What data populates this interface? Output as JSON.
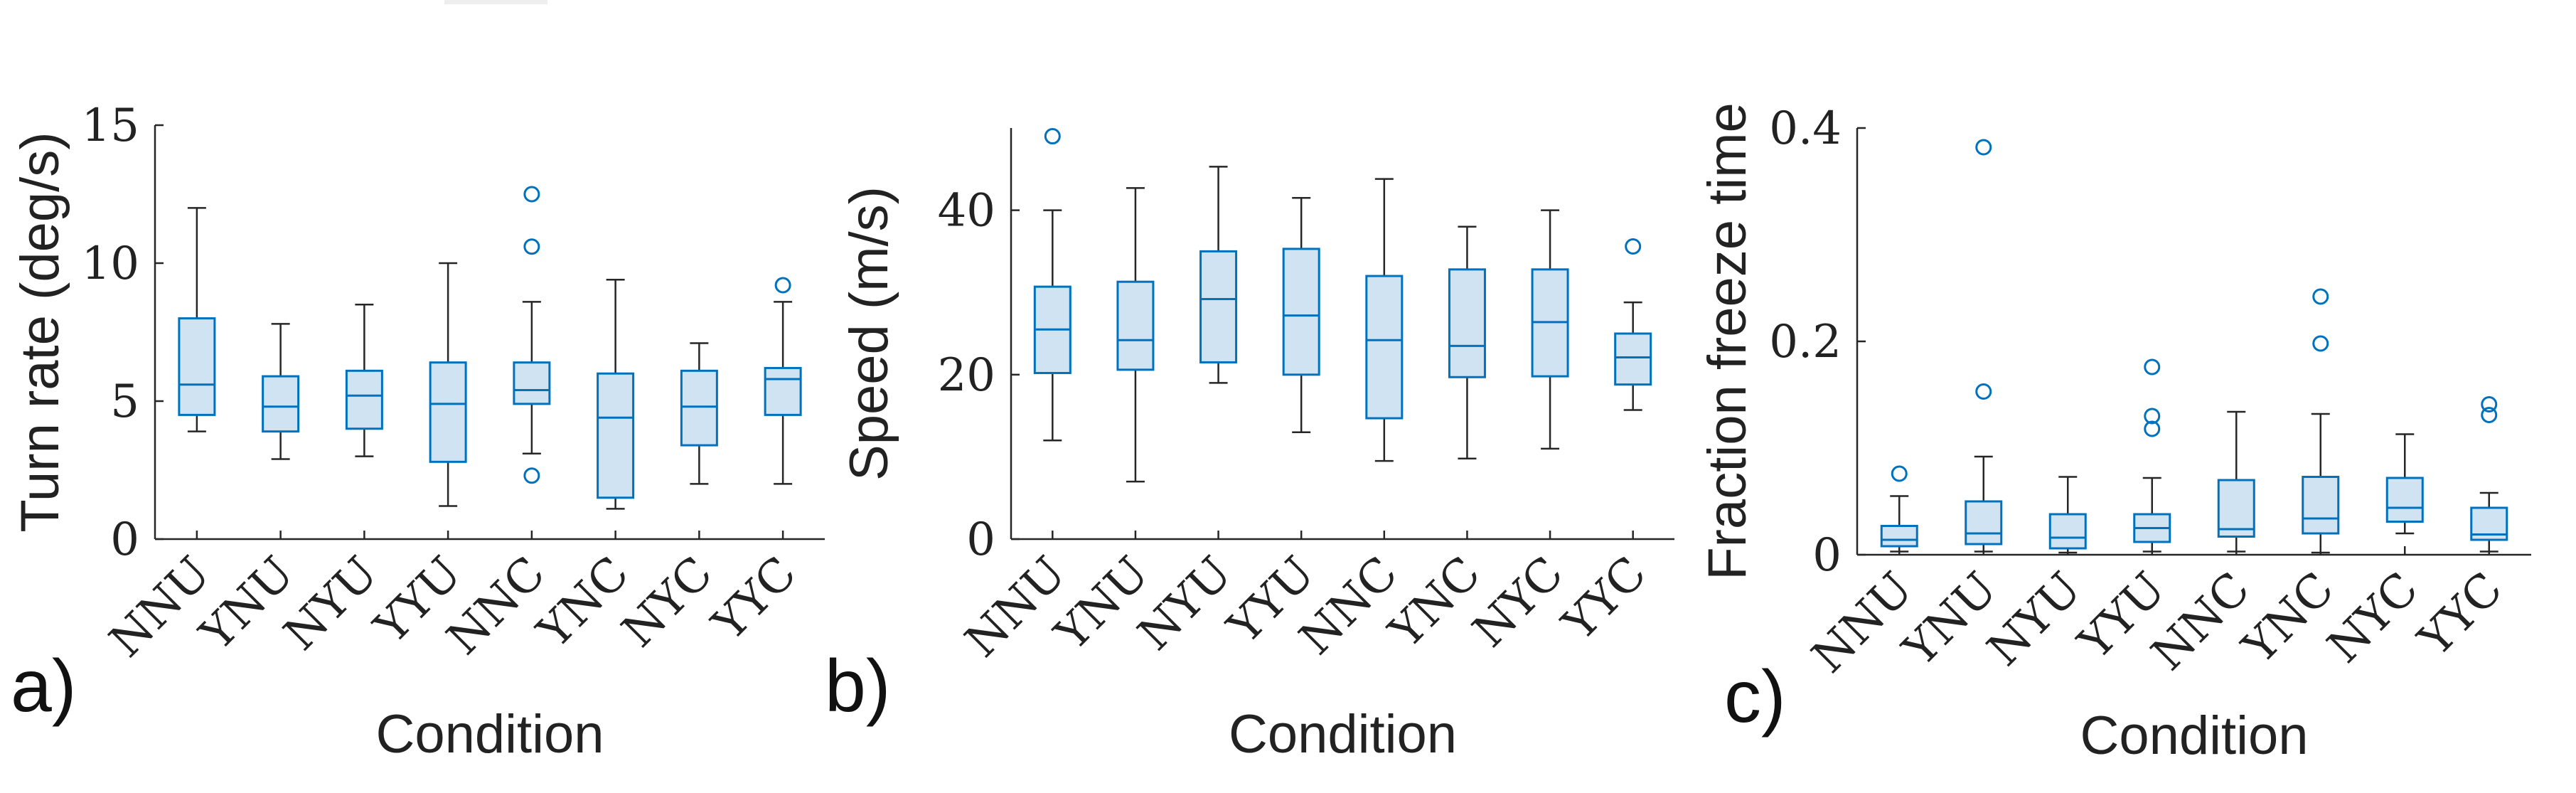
{
  "figure": {
    "colors": {
      "box_edge": "#0072BD",
      "box_fill": "#cfe3f2",
      "whisker": "#262626",
      "axis": "#262626"
    }
  },
  "chart_data": [
    {
      "type": "box",
      "panel_label": "a)",
      "xlabel": "Condition",
      "ylabel": "Turn rate (deg/s)",
      "ylim": [
        0,
        15
      ],
      "yticks": [
        0,
        5,
        10,
        15
      ],
      "ytick_labels": [
        "0",
        "5",
        "10",
        "15"
      ],
      "grid": false,
      "categories": [
        "NNU",
        "YNU",
        "NYU",
        "YYU",
        "NNC",
        "YNC",
        "NYC",
        "YYC"
      ],
      "boxes": [
        {
          "min": 3.9,
          "q1": 4.5,
          "median": 5.6,
          "q3": 8.0,
          "max": 12.0,
          "outliers": []
        },
        {
          "min": 2.9,
          "q1": 3.9,
          "median": 4.8,
          "q3": 5.9,
          "max": 7.8,
          "outliers": []
        },
        {
          "min": 3.0,
          "q1": 4.0,
          "median": 5.2,
          "q3": 6.1,
          "max": 8.5,
          "outliers": []
        },
        {
          "min": 1.2,
          "q1": 2.8,
          "median": 4.9,
          "q3": 6.4,
          "max": 10.0,
          "outliers": []
        },
        {
          "min": 3.1,
          "q1": 4.9,
          "median": 5.4,
          "q3": 6.4,
          "max": 8.6,
          "outliers": [
            12.5,
            10.6,
            2.3
          ]
        },
        {
          "min": 1.1,
          "q1": 1.5,
          "median": 4.4,
          "q3": 6.0,
          "max": 9.4,
          "outliers": []
        },
        {
          "min": 2.0,
          "q1": 3.4,
          "median": 4.8,
          "q3": 6.1,
          "max": 7.1,
          "outliers": []
        },
        {
          "min": 2.0,
          "q1": 4.5,
          "median": 5.8,
          "q3": 6.2,
          "max": 8.6,
          "outliers": [
            9.2
          ]
        }
      ]
    },
    {
      "type": "box",
      "panel_label": "b)",
      "xlabel": "Condition",
      "ylabel": "Speed (m/s)",
      "ylim": [
        0,
        50
      ],
      "yticks": [
        0,
        20,
        40
      ],
      "ytick_labels": [
        "0",
        "20",
        "40"
      ],
      "grid": false,
      "categories": [
        "NNU",
        "YNU",
        "NYU",
        "YYU",
        "NNC",
        "YNC",
        "NYC",
        "YYC"
      ],
      "boxes": [
        {
          "min": 12.0,
          "q1": 20.2,
          "median": 25.5,
          "q3": 30.7,
          "max": 40.0,
          "outliers": [
            49.0
          ]
        },
        {
          "min": 7.0,
          "q1": 20.6,
          "median": 24.2,
          "q3": 31.3,
          "max": 42.7,
          "outliers": []
        },
        {
          "min": 19.0,
          "q1": 21.5,
          "median": 29.2,
          "q3": 35.0,
          "max": 45.3,
          "outliers": []
        },
        {
          "min": 13.0,
          "q1": 20.0,
          "median": 27.2,
          "q3": 35.3,
          "max": 41.5,
          "outliers": []
        },
        {
          "min": 9.5,
          "q1": 14.7,
          "median": 24.2,
          "q3": 32.0,
          "max": 43.8,
          "outliers": []
        },
        {
          "min": 9.8,
          "q1": 19.7,
          "median": 23.5,
          "q3": 32.8,
          "max": 38.0,
          "outliers": []
        },
        {
          "min": 11.0,
          "q1": 19.8,
          "median": 26.4,
          "q3": 32.8,
          "max": 40.0,
          "outliers": []
        },
        {
          "min": 15.7,
          "q1": 18.8,
          "median": 22.1,
          "q3": 25.0,
          "max": 28.8,
          "outliers": [
            35.6
          ]
        }
      ]
    },
    {
      "type": "box",
      "panel_label": "c)",
      "xlabel": "Condition",
      "ylabel": "Fraction freeze time",
      "ylim": [
        0,
        0.4
      ],
      "yticks": [
        0,
        0.2,
        0.4
      ],
      "ytick_labels": [
        "0",
        "0.2",
        "0.4"
      ],
      "grid": false,
      "categories": [
        "NNU",
        "YNU",
        "NYU",
        "YYU",
        "NNC",
        "YNC",
        "NYC",
        "YYC"
      ],
      "boxes": [
        {
          "min": 0.003,
          "q1": 0.008,
          "median": 0.014,
          "q3": 0.027,
          "max": 0.055,
          "outliers": [
            0.076
          ]
        },
        {
          "min": 0.003,
          "q1": 0.01,
          "median": 0.02,
          "q3": 0.05,
          "max": 0.092,
          "outliers": [
            0.382,
            0.153
          ]
        },
        {
          "min": 0.002,
          "q1": 0.006,
          "median": 0.016,
          "q3": 0.038,
          "max": 0.073,
          "outliers": []
        },
        {
          "min": 0.003,
          "q1": 0.012,
          "median": 0.025,
          "q3": 0.038,
          "max": 0.072,
          "outliers": [
            0.176,
            0.13,
            0.118
          ]
        },
        {
          "min": 0.003,
          "q1": 0.017,
          "median": 0.024,
          "q3": 0.07,
          "max": 0.134,
          "outliers": []
        },
        {
          "min": 0.002,
          "q1": 0.02,
          "median": 0.034,
          "q3": 0.073,
          "max": 0.132,
          "outliers": [
            0.242,
            0.198
          ]
        },
        {
          "min": 0.02,
          "q1": 0.031,
          "median": 0.044,
          "q3": 0.072,
          "max": 0.113,
          "outliers": []
        },
        {
          "min": 0.003,
          "q1": 0.014,
          "median": 0.019,
          "q3": 0.044,
          "max": 0.058,
          "outliers": [
            0.141,
            0.131
          ]
        }
      ]
    }
  ]
}
